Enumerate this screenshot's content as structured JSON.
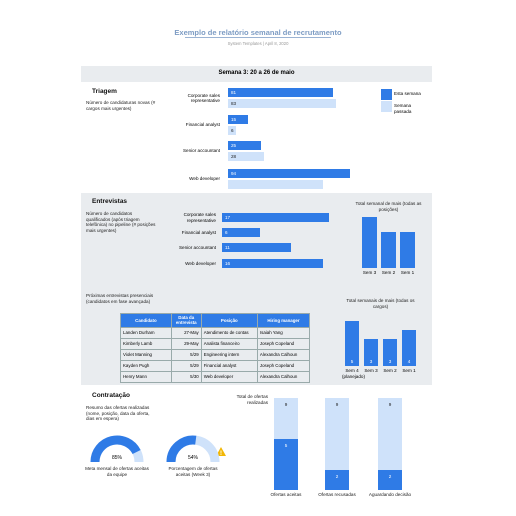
{
  "header": {
    "title": "Exemplo de relatório semanal de recrutamento",
    "subtitle": "System Templates | April 8, 2020"
  },
  "week": "Semana 3: 20 a 26 de maio",
  "screening": {
    "heading": "Triagem",
    "description": "Número de candidaturas novas (# cargos mais urgentes)",
    "chart": {
      "type": "bar",
      "orientation": "horizontal",
      "categories": [
        "Corporate sales representative",
        "Financial analyst",
        "Senior accountant",
        "Web developer"
      ],
      "series": [
        {
          "name": "Esta semana",
          "color": "#2f7be6",
          "values": [
            81,
            15,
            25,
            94
          ]
        },
        {
          "name": "Semana passada",
          "color": "#cfe2fa",
          "values": [
            83,
            6,
            28,
            73
          ],
          "value_labels": [
            "83",
            "6",
            "28",
            null
          ]
        }
      ],
      "xlim": [
        0,
        100
      ]
    }
  },
  "interviews": {
    "heading": "Entrevistas",
    "description": "Número de candidatos qualificados (após triagem telefônica) no pipeline (# posições mais urgentes)",
    "chart": {
      "type": "bar",
      "orientation": "horizontal",
      "categories": [
        "Corporate sales representative",
        "Financial analyst",
        "Senior accountant",
        "Web developer"
      ],
      "values": [
        17,
        6,
        11,
        16
      ],
      "color": "#2f7be6",
      "xlim": [
        0,
        20
      ]
    },
    "weekly_chart": {
      "type": "bar",
      "title": "Total semanal de mais (todas as posições)",
      "categories": [
        "Sem 3",
        "Sem 2",
        "Sem 1"
      ],
      "values": [
        14,
        10,
        10
      ],
      "color": "#2f7be6",
      "ylim": [
        0,
        14
      ]
    },
    "upcoming": {
      "caption": "Próximas entrevistas presenciais (candidatos em fase avançada)",
      "table": {
        "header": [
          "Candidato",
          "Data da entrevista",
          "Posição",
          "Hiring manager"
        ],
        "rows": [
          [
            "Landen Durham",
            "27-May",
            "Atendimento de contas",
            "Isaiah Yang"
          ],
          [
            "Kimberly Lamb",
            "29-May",
            "Analista financeiro",
            "Joseph Copeland"
          ],
          [
            "Violet Manning",
            "5/29",
            "Engineering intern",
            "Alexandra Calhoun"
          ],
          [
            "Kayden Pugh",
            "5/29",
            "Financial analyst",
            "Joseph Copeland"
          ],
          [
            "Henry Mann",
            "5/30",
            "Web developer",
            "Alexandra Calhoun"
          ]
        ]
      }
    },
    "roles_chart": {
      "type": "bar",
      "title": "Total semanais de mais (todas os cargos)",
      "categories": [
        "Sem 4 (planejado)",
        "Sem 3",
        "Sem 2",
        "Sem 1"
      ],
      "values": [
        5,
        3,
        3,
        4
      ],
      "color": "#2f7be6",
      "ylim": [
        0,
        5
      ]
    }
  },
  "hiring": {
    "heading": "Contratação",
    "description": "Resumo das ofertas realizadas (nome, posição, data da oferta, dias em espera)",
    "gauges": [
      {
        "value": 85,
        "value_label": "85%",
        "caption": "Meta mensal de ofertas aceitas da equipe"
      },
      {
        "value": 54,
        "value_label": "54%",
        "caption": "Porcentagem de ofertas aceitas (Week 3)"
      }
    ],
    "offers": {
      "type": "bar",
      "title": "Total de ofertas realizadas",
      "categories": [
        "Ofertas aceitas",
        "Ofertas recusadas",
        "Aguardando decisão"
      ],
      "series": [
        {
          "color": "#cfe2fa",
          "values": [
            9,
            9,
            9
          ]
        },
        {
          "color": "#2f7be6",
          "values": [
            5,
            2,
            2
          ]
        }
      ],
      "ylim": [
        0,
        9
      ]
    }
  }
}
